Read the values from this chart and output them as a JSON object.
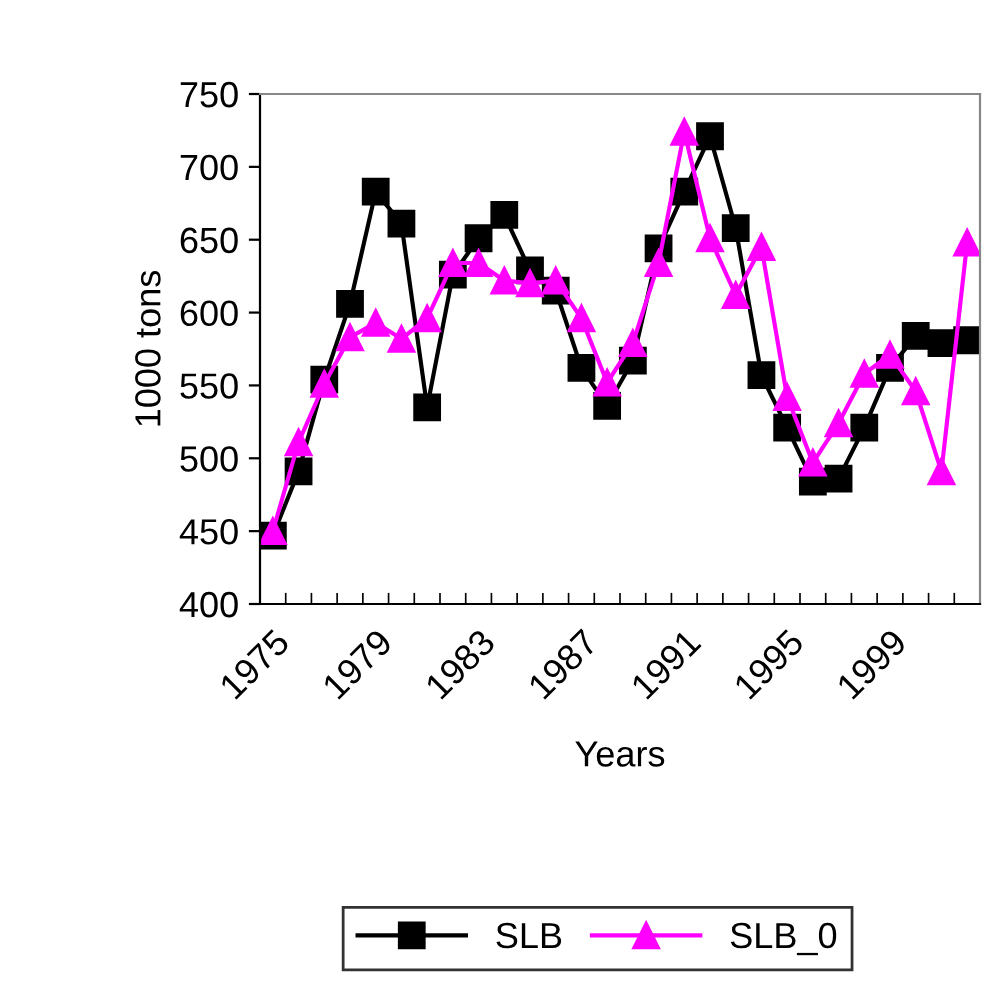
{
  "chart_data": {
    "type": "line",
    "xlabel": "Years",
    "ylabel": "1000 tons",
    "categories": [
      "1975",
      null,
      null,
      null,
      "1979",
      null,
      null,
      null,
      "1983",
      null,
      null,
      null,
      "1987",
      null,
      null,
      null,
      "1991",
      null,
      null,
      null,
      "1995",
      null,
      null,
      null,
      "1999",
      null,
      null,
      null
    ],
    "series": [
      {
        "name": "SLB",
        "color": "#000000",
        "marker": "square",
        "values": [
          447,
          491,
          554,
          606,
          683,
          661,
          535,
          626,
          651,
          667,
          629,
          615,
          562,
          536,
          567,
          644,
          683,
          721,
          658,
          557,
          521,
          484,
          486,
          521,
          562,
          584,
          579,
          581
        ]
      },
      {
        "name": "SLB_0",
        "color": "#ff00ff",
        "marker": "triangle",
        "values": [
          450,
          511,
          551,
          583,
          593,
          582,
          596,
          634,
          634,
          622,
          620,
          622,
          596,
          552,
          579,
          634,
          724,
          651,
          612,
          645,
          542,
          497,
          524,
          558,
          571,
          546,
          491,
          648
        ]
      }
    ],
    "ylim": [
      400,
      750
    ],
    "yticks": [
      400,
      450,
      500,
      550,
      600,
      650,
      700,
      750
    ],
    "grid": false,
    "legend": "bottom",
    "line_style": "solid"
  }
}
